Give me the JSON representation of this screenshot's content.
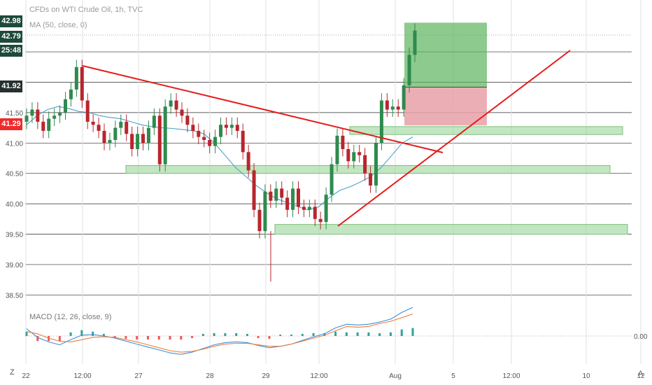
{
  "header": {
    "title": "CFDs on WTI Crude Oil, 1h, TVC",
    "ma_label": "MA (50, close, 0)",
    "macd_label": "MACD (12, 26, close, 9)"
  },
  "price_tags": [
    {
      "label": "42.98",
      "color": "#1d4a3a"
    },
    {
      "label": "42.79",
      "color": "#1d4a3a"
    },
    {
      "label": "25:48",
      "color": "#1d4a3a"
    },
    {
      "label": "41.92",
      "color": "#26302e"
    },
    {
      "label": "41.29",
      "color": "#ee2b2b"
    }
  ],
  "corner_left": "Z",
  "corner_right": "A",
  "chart_data": {
    "type": "line",
    "title": "CFDs on WTI Crude Oil, 1h, TVC",
    "y_ticks": [
      "41.50",
      "41.00",
      "40.50",
      "40.00",
      "39.50",
      "39.00",
      "38.50"
    ],
    "ylim": [
      38.4,
      43.1
    ],
    "x_ticks": [
      "22",
      "12:00",
      "27",
      "28",
      "29",
      "12:00",
      "Aug",
      "5",
      "12:00",
      "10",
      "12",
      "A"
    ],
    "macd_ticks": [
      "0.00"
    ],
    "series": [
      {
        "values": [
          41.45,
          41.55,
          41.35,
          41.2,
          41.4,
          41.45,
          41.5,
          41.72,
          41.88,
          42.25,
          41.7,
          41.35,
          41.3,
          41.2,
          41.0,
          41.05,
          41.25,
          41.35,
          41.15,
          40.9,
          41.15,
          41.0,
          41.25,
          41.45,
          40.65,
          41.6,
          41.7,
          41.55,
          41.45,
          41.3,
          41.2,
          41.1,
          41.05,
          40.95,
          41.1,
          41.3,
          41.25,
          41.3,
          41.2,
          40.85,
          40.55,
          39.9,
          39.55,
          40.2,
          40.05,
          40.25,
          40.1,
          39.9,
          40.25,
          39.95,
          39.9,
          39.95,
          39.75,
          39.7,
          40.15,
          40.65,
          41.12,
          40.9,
          40.7,
          40.85,
          40.8,
          40.5,
          40.3,
          41.0,
          41.7,
          41.55,
          41.6,
          41.55,
          41.95,
          42.45,
          42.85
        ]
      },
      {
        "values": [
          41.3,
          41.45,
          41.55,
          41.6,
          41.57,
          41.52,
          41.5,
          41.45,
          41.42,
          41.4,
          41.35,
          41.3,
          41.27,
          41.25,
          41.24,
          41.22,
          41.2,
          41.15,
          41.0,
          40.8,
          40.6,
          40.45,
          40.3,
          40.18,
          40.08,
          40.02,
          39.95,
          39.9,
          39.95,
          40.1,
          40.22,
          40.28,
          40.36,
          40.45,
          40.6,
          40.8,
          41.0,
          41.1
        ]
      },
      {
        "values": [
          0.1,
          -0.02,
          -0.08,
          -0.12,
          -0.05,
          0.01,
          0.02,
          0.0,
          -0.03,
          -0.07,
          -0.11,
          -0.15,
          -0.19,
          -0.23,
          -0.25,
          -0.22,
          -0.17,
          -0.12,
          -0.09,
          -0.08,
          -0.09,
          -0.13,
          -0.16,
          -0.14,
          -0.11,
          -0.06,
          -0.01,
          0.03,
          0.11,
          0.16,
          0.15,
          0.16,
          0.19,
          0.23,
          0.32,
          0.39
        ]
      },
      {
        "values": [
          0.06,
          0.03,
          -0.03,
          -0.07,
          -0.08,
          -0.05,
          -0.02,
          -0.01,
          -0.02,
          -0.05,
          -0.08,
          -0.12,
          -0.16,
          -0.2,
          -0.22,
          -0.21,
          -0.18,
          -0.14,
          -0.11,
          -0.1,
          -0.1,
          -0.12,
          -0.14,
          -0.14,
          -0.11,
          -0.07,
          -0.03,
          0.01,
          0.07,
          0.13,
          0.12,
          0.13,
          0.17,
          0.2,
          0.25,
          0.3
        ]
      }
    ],
    "drawings": {
      "trendlines": [
        {
          "from": [
            41.92,
            42.28
          ],
          "to": [
            40.55,
            40.85
          ]
        },
        {
          "from": [
            39.6,
            39.58
          ],
          "to": [
            41.45,
            42.5
          ]
        }
      ],
      "zones": [
        {
          "top": 41.27,
          "bottom": 41.14
        },
        {
          "top": 40.63,
          "bottom": 40.5
        },
        {
          "top": 39.66,
          "bottom": 39.5
        }
      ],
      "position": {
        "entry": 41.92,
        "stop": 41.29,
        "target": 42.98
      }
    },
    "grid": true,
    "legend": "none"
  }
}
